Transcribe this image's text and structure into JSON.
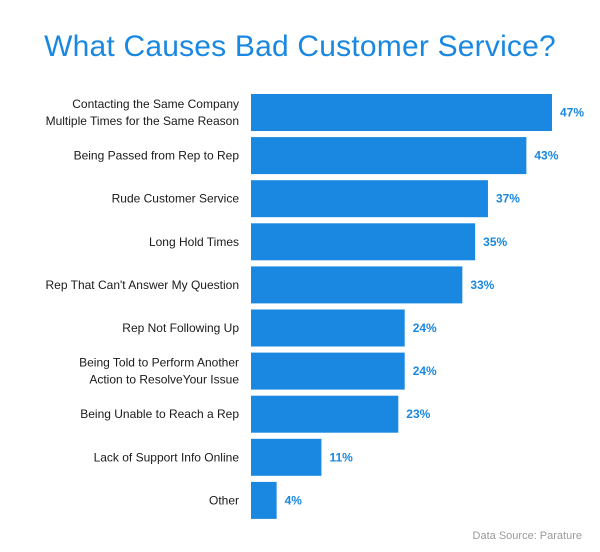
{
  "chart_data": {
    "type": "bar",
    "orientation": "horizontal",
    "title": "What Causes Bad Customer Service?",
    "categories": [
      [
        "Contacting the Same Company",
        "Multiple Times for the Same Reason"
      ],
      [
        "Being Passed from Rep to Rep"
      ],
      [
        "Rude Customer Service"
      ],
      [
        "Long Hold Times"
      ],
      [
        "Rep That Can't Answer My Question"
      ],
      [
        "Rep Not Following Up"
      ],
      [
        "Being Told to Perform Another",
        "Action to ResolveYour Issue"
      ],
      [
        "Being Unable to Reach a Rep"
      ],
      [
        "Lack of Support Info Online"
      ],
      [
        "Other"
      ]
    ],
    "values": [
      47,
      43,
      37,
      35,
      33,
      24,
      24,
      23,
      11,
      4
    ],
    "value_labels": [
      "47%",
      "43%",
      "37%",
      "35%",
      "33%",
      "24%",
      "24%",
      "23%",
      "11%",
      "4%"
    ],
    "unit": "%",
    "xlim": [
      0,
      47
    ],
    "grid": false,
    "bar_color": "#1a88e0",
    "label_color": "#1a88e0",
    "source": "Data Source: Parature"
  }
}
